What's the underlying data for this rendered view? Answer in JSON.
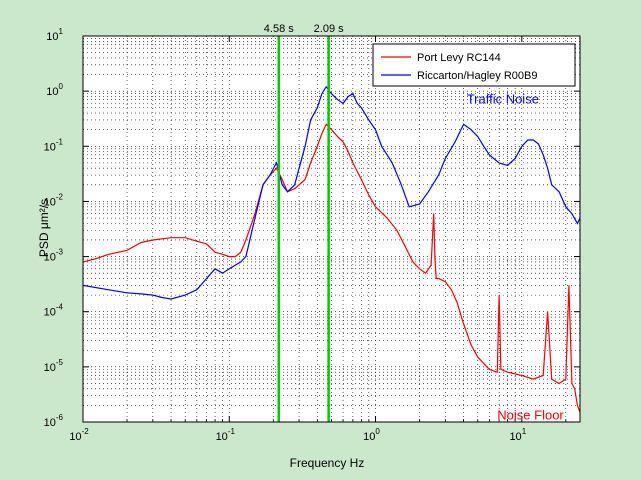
{
  "chart_data": {
    "type": "line",
    "title": "",
    "xlabel": "Frequency Hz",
    "ylabel": "PSD μm²/s",
    "x_scale": "log",
    "y_scale": "log",
    "xlim": [
      0.01,
      25
    ],
    "ylim": [
      1e-06,
      10
    ],
    "x_ticks": [
      {
        "value": 0.01,
        "base": "10",
        "exp": "-2"
      },
      {
        "value": 0.1,
        "base": "10",
        "exp": "-1"
      },
      {
        "value": 1,
        "base": "10",
        "exp": "0"
      },
      {
        "value": 10,
        "base": "10",
        "exp": "1"
      }
    ],
    "y_ticks": [
      {
        "value": 1e-06,
        "base": "10",
        "exp": "-6"
      },
      {
        "value": 1e-05,
        "base": "10",
        "exp": "-5"
      },
      {
        "value": 0.0001,
        "base": "10",
        "exp": "-4"
      },
      {
        "value": 0.001,
        "base": "10",
        "exp": "-3"
      },
      {
        "value": 0.01,
        "base": "10",
        "exp": "-2"
      },
      {
        "value": 0.1,
        "base": "10",
        "exp": "-1"
      },
      {
        "value": 1,
        "base": "10",
        "exp": "0"
      },
      {
        "value": 10,
        "base": "10",
        "exp": "1"
      }
    ],
    "grid": true,
    "legend_position": "top-right",
    "series": [
      {
        "name": "Port Levy RC144",
        "color": "#ff0000",
        "x": [
          0.01,
          0.012,
          0.015,
          0.02,
          0.025,
          0.03,
          0.04,
          0.05,
          0.06,
          0.07,
          0.08,
          0.09,
          0.1,
          0.11,
          0.12,
          0.13,
          0.15,
          0.17,
          0.19,
          0.21,
          0.23,
          0.25,
          0.28,
          0.3,
          0.33,
          0.36,
          0.4,
          0.43,
          0.46,
          0.5,
          0.55,
          0.6,
          0.65,
          0.7,
          0.8,
          0.9,
          1.0,
          1.2,
          1.4,
          1.6,
          1.8,
          2.0,
          2.2,
          2.4,
          2.5,
          2.55,
          2.6,
          2.7,
          3.0,
          3.3,
          3.6,
          4.0,
          4.5,
          5.0,
          6.0,
          6.8,
          7.0,
          7.2,
          8.0,
          10.0,
          12.0,
          14.0,
          15.0,
          16.0,
          18.0,
          20.0,
          21.0,
          22.0,
          23.0,
          24.0,
          25.0
        ],
        "values": [
          0.0008,
          0.0009,
          0.0011,
          0.0013,
          0.0018,
          0.002,
          0.0022,
          0.0022,
          0.0019,
          0.0017,
          0.0012,
          0.0011,
          0.001,
          0.001,
          0.0012,
          0.002,
          0.006,
          0.02,
          0.03,
          0.04,
          0.025,
          0.015,
          0.017,
          0.02,
          0.025,
          0.05,
          0.1,
          0.17,
          0.25,
          0.2,
          0.15,
          0.12,
          0.08,
          0.05,
          0.025,
          0.013,
          0.008,
          0.005,
          0.003,
          0.0015,
          0.0008,
          0.0006,
          0.0005,
          0.0007,
          0.006,
          0.0009,
          0.0004,
          0.0004,
          0.00035,
          0.00025,
          0.00015,
          6e-05,
          2.5e-05,
          1.5e-05,
          9e-06,
          8e-06,
          0.0002,
          9e-06,
          8e-06,
          7e-06,
          6e-06,
          7e-06,
          0.0001,
          6e-06,
          5e-06,
          6e-06,
          0.0003,
          5e-06,
          4e-06,
          2e-06,
          1.5e-06
        ]
      },
      {
        "name": "Riccarton/Hagley R00B9",
        "color": "#0000ff",
        "x": [
          0.01,
          0.015,
          0.02,
          0.025,
          0.03,
          0.035,
          0.04,
          0.05,
          0.06,
          0.07,
          0.08,
          0.09,
          0.1,
          0.11,
          0.12,
          0.13,
          0.15,
          0.17,
          0.19,
          0.21,
          0.23,
          0.25,
          0.28,
          0.3,
          0.33,
          0.36,
          0.4,
          0.43,
          0.46,
          0.5,
          0.55,
          0.6,
          0.65,
          0.7,
          0.75,
          0.8,
          0.9,
          1.0,
          1.1,
          1.2,
          1.3,
          1.5,
          1.7,
          2.0,
          2.3,
          2.7,
          3.0,
          3.5,
          4.0,
          4.5,
          5.0,
          5.5,
          6.0,
          7.0,
          8.0,
          9.0,
          10.0,
          11.0,
          12.0,
          13.0,
          14.0,
          15.0,
          16.0,
          18.0,
          20.0,
          22.0,
          24.0,
          25.0
        ],
        "values": [
          0.0003,
          0.00025,
          0.00022,
          0.00021,
          0.0002,
          0.00018,
          0.00017,
          0.0002,
          0.00025,
          0.0004,
          0.0006,
          0.0005,
          0.0006,
          0.0007,
          0.0008,
          0.001,
          0.005,
          0.02,
          0.03,
          0.05,
          0.02,
          0.015,
          0.02,
          0.04,
          0.1,
          0.3,
          0.5,
          0.9,
          1.2,
          0.9,
          0.7,
          0.6,
          0.8,
          0.9,
          0.6,
          0.5,
          0.3,
          0.2,
          0.1,
          0.07,
          0.05,
          0.02,
          0.008,
          0.009,
          0.015,
          0.03,
          0.06,
          0.12,
          0.25,
          0.2,
          0.15,
          0.1,
          0.07,
          0.05,
          0.045,
          0.06,
          0.1,
          0.13,
          0.13,
          0.11,
          0.07,
          0.04,
          0.02,
          0.015,
          0.008,
          0.006,
          0.004,
          0.005
        ]
      }
    ],
    "vertical_lines": [
      {
        "x": 0.218,
        "label": "4.58 s",
        "color": "#00cc00"
      },
      {
        "x": 0.478,
        "label": "2.09 s",
        "color": "#00cc00"
      }
    ],
    "annotations": [
      {
        "text": "Traffic Noise",
        "x": 4.2,
        "y": 0.7,
        "color": "#0000ff"
      },
      {
        "text": "Noise Floor",
        "x": 6.8,
        "y": 1.3e-06,
        "color": "#ff0000"
      }
    ]
  }
}
